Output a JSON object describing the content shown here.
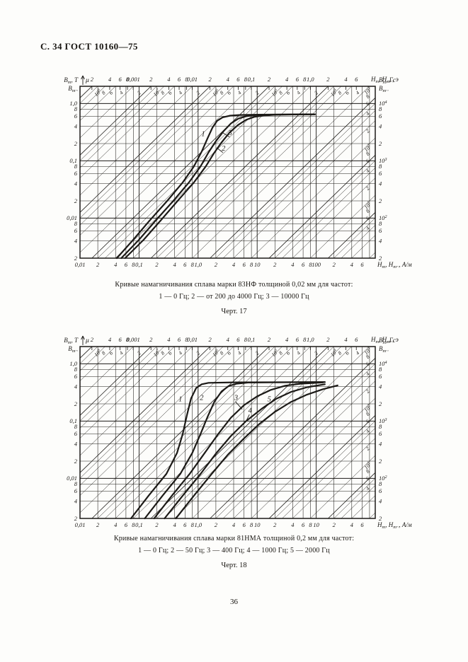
{
  "page": {
    "header": "С. 34 ГОСТ 10160—75",
    "page_number": "36"
  },
  "figure1": {
    "caption": "Кривые намагничивания сплава марки 83НФ толщиной 0,02  мм для частот:",
    "legend": "1 — 0 Гц; 2 — от 200 до 4000 Гц; 3 — 10000 Гц",
    "label": "Черт. 17"
  },
  "figure2": {
    "caption": "Кривые намагничивания сплава марки 81НМА толщиной 0,2  мм для частот:",
    "legend": "1 — 0 Гц; 2 — 50 Гц; 3 — 400 Гц; 4 — 1000 Гц; 5 — 2000 Гц",
    "label": "Черт. 18"
  },
  "chart_data": [
    {
      "type": "line",
      "title": "Кривые намагничивания сплава марки 83НФ толщиной 0,02 мм",
      "x_axis_bottom": {
        "label": "Hm, Hm~, А/м",
        "scale": "log",
        "range": [
          0.01,
          1000
        ],
        "decade_labels": [
          "0,01",
          "0,1",
          "1,0",
          "10",
          "100"
        ],
        "sub_ticks": [
          2,
          4,
          6,
          8
        ],
        "max_label_value": 600
      },
      "x_axis_top": {
        "label": "Hm, Hm~, э",
        "scale": "log",
        "unit_factor_A_per_m": 79.5775,
        "decade_labels": [
          "0,001",
          "0,01",
          "0,1",
          "1,0"
        ],
        "sub_ticks": [
          2,
          4,
          6,
          8
        ],
        "max_label_value": 6
      },
      "y_axis_left": {
        "label_lines": [
          "Bm, Т",
          "Bm~"
        ],
        "scale": "log",
        "range": [
          0.002,
          2
        ],
        "decade_labels": [
          "0,01",
          "0,1",
          "1,0"
        ],
        "sub_ticks": [
          2,
          4,
          6,
          8
        ]
      },
      "y_axis_right": {
        "label_lines": [
          "Bm, Гс",
          "Bm~"
        ],
        "decade_labels": [
          "10²",
          "10³",
          "10⁴"
        ],
        "sub_ticks": [
          2,
          4,
          6,
          8
        ]
      },
      "permeability_grid": {
        "symbol": "μ",
        "decade_labels": [
          "10¹",
          "10²",
          "10³",
          "10⁴",
          "10⁵",
          "10⁶",
          "10⁷",
          "10⁸"
        ]
      },
      "series": [
        {
          "name": "1",
          "frequency": "0 Гц",
          "label_at": [
            1.22,
            0.27
          ],
          "leader_to": null,
          "points": [
            [
              0.042,
              0.002
            ],
            [
              0.08,
              0.0042
            ],
            [
              0.15,
              0.009
            ],
            [
              0.3,
              0.02
            ],
            [
              0.55,
              0.042
            ],
            [
              0.85,
              0.08
            ],
            [
              1.15,
              0.145
            ],
            [
              1.45,
              0.25
            ],
            [
              1.75,
              0.38
            ],
            [
              2.1,
              0.5
            ],
            [
              2.6,
              0.575
            ],
            [
              3.5,
              0.615
            ],
            [
              5,
              0.63
            ],
            [
              10,
              0.64
            ],
            [
              95,
              0.648
            ]
          ]
        },
        {
          "name": "2",
          "frequency": "от 200 до 4000 Гц",
          "label_at": [
            2.7,
            0.15
          ],
          "leader_to": [
            2.05,
            0.17
          ],
          "points": [
            [
              0.058,
              0.002
            ],
            [
              0.12,
              0.0042
            ],
            [
              0.23,
              0.009
            ],
            [
              0.45,
              0.02
            ],
            [
              0.85,
              0.042
            ],
            [
              1.35,
              0.08
            ],
            [
              1.85,
              0.135
            ],
            [
              2.5,
              0.21
            ],
            [
              3.4,
              0.31
            ],
            [
              4.7,
              0.42
            ],
            [
              6.5,
              0.52
            ],
            [
              9,
              0.585
            ],
            [
              13,
              0.617
            ],
            [
              20,
              0.636
            ],
            [
              50,
              0.645
            ],
            [
              95,
              0.648
            ]
          ]
        },
        {
          "name": "3",
          "frequency": "10000 Гц",
          "label_at": [
            3.5,
            0.28
          ],
          "leader_to": [
            2.6,
            0.31
          ],
          "points": [
            [
              0.05,
              0.002
            ],
            [
              0.1,
              0.0042
            ],
            [
              0.19,
              0.009
            ],
            [
              0.38,
              0.02
            ],
            [
              0.7,
              0.042
            ],
            [
              1.1,
              0.08
            ],
            [
              1.5,
              0.14
            ],
            [
              2.0,
              0.22
            ],
            [
              2.7,
              0.33
            ],
            [
              3.6,
              0.45
            ],
            [
              4.8,
              0.545
            ],
            [
              6.5,
              0.6
            ],
            [
              9,
              0.625
            ],
            [
              14,
              0.638
            ],
            [
              95,
              0.648
            ]
          ]
        }
      ]
    },
    {
      "type": "line",
      "title": "Кривые намагничивания сплава марки 81НМА толщиной 0,2 мм",
      "x_axis_bottom": {
        "label": "Hm, Hm~, А/м",
        "scale": "log",
        "range": [
          0.01,
          1000
        ],
        "decade_labels": [
          "0,01",
          "0,1",
          "1,0",
          "10",
          "10"
        ],
        "sub_ticks": [
          2,
          4,
          6,
          8
        ],
        "max_label_value": 600
      },
      "x_axis_top": {
        "label": "Hm, Hm~, э",
        "scale": "log",
        "unit_factor_A_per_m": 79.5775,
        "decade_labels": [
          "0,001",
          "0,01",
          "0,1",
          "1,0"
        ],
        "sub_ticks": [
          2,
          4,
          6,
          8
        ],
        "max_label_value": 6
      },
      "y_axis_left": {
        "label_lines": [
          "Bm, Т",
          "Bm~"
        ],
        "scale": "log",
        "range": [
          0.002,
          2
        ],
        "decade_labels": [
          "0,01",
          "0,1",
          "1,0"
        ],
        "sub_ticks": [
          2,
          4,
          6,
          8
        ]
      },
      "y_axis_right": {
        "label_lines": [
          "Bm, Гс",
          "Bm~"
        ],
        "decade_labels": [
          "10²",
          "10³",
          "10⁴"
        ],
        "sub_ticks": [
          2,
          4,
          6,
          8
        ]
      },
      "permeability_grid": {
        "symbol": "μ",
        "decade_labels": [
          "10¹",
          "10²",
          "10³",
          "10⁴",
          "10⁵",
          "10⁶",
          "10⁷",
          "10⁸"
        ]
      },
      "series": [
        {
          "name": "1",
          "frequency": "0 Гц",
          "label_at": [
            0.5,
            0.22
          ],
          "leader_to": null,
          "points": [
            [
              0.073,
              0.002
            ],
            [
              0.145,
              0.005
            ],
            [
              0.29,
              0.012
            ],
            [
              0.44,
              0.028
            ],
            [
              0.55,
              0.06
            ],
            [
              0.65,
              0.13
            ],
            [
              0.76,
              0.25
            ],
            [
              0.93,
              0.38
            ],
            [
              1.15,
              0.44
            ],
            [
              1.5,
              0.465
            ],
            [
              4,
              0.475
            ],
            [
              140,
              0.48
            ]
          ]
        },
        {
          "name": "2",
          "frequency": "50 Гц",
          "label_at": [
            1.15,
            0.235
          ],
          "leader_to": null,
          "points": [
            [
              0.125,
              0.002
            ],
            [
              0.25,
              0.005
            ],
            [
              0.5,
              0.012
            ],
            [
              0.8,
              0.028
            ],
            [
              1.1,
              0.06
            ],
            [
              1.45,
              0.12
            ],
            [
              1.9,
              0.22
            ],
            [
              2.5,
              0.33
            ],
            [
              3.3,
              0.41
            ],
            [
              4.5,
              0.45
            ],
            [
              7,
              0.47
            ],
            [
              140,
              0.48
            ]
          ]
        },
        {
          "name": "3",
          "frequency": "400 Гц",
          "label_at": [
            4.4,
            0.235
          ],
          "leader_to": [
            5.6,
            0.16
          ],
          "points": [
            [
              0.18,
              0.002
            ],
            [
              0.36,
              0.005
            ],
            [
              0.72,
              0.012
            ],
            [
              1.3,
              0.028
            ],
            [
              2.2,
              0.06
            ],
            [
              3.6,
              0.115
            ],
            [
              6,
              0.19
            ],
            [
              10,
              0.27
            ],
            [
              17,
              0.35
            ],
            [
              30,
              0.415
            ],
            [
              55,
              0.45
            ],
            [
              130,
              0.472
            ]
          ]
        },
        {
          "name": "4",
          "frequency": "1000 Гц",
          "label_at": [
            7.6,
            0.14
          ],
          "leader_to": [
            6.5,
            0.1
          ],
          "points": [
            [
              0.27,
              0.002
            ],
            [
              0.55,
              0.005
            ],
            [
              1.1,
              0.012
            ],
            [
              2.0,
              0.027
            ],
            [
              3.6,
              0.055
            ],
            [
              6.5,
              0.1
            ],
            [
              12,
              0.165
            ],
            [
              21,
              0.245
            ],
            [
              38,
              0.325
            ],
            [
              70,
              0.39
            ],
            [
              140,
              0.44
            ]
          ]
        },
        {
          "name": "5",
          "frequency": "2000 Гц",
          "label_at": [
            16,
            0.22
          ],
          "leader_to": null,
          "points": [
            [
              0.42,
              0.002
            ],
            [
              0.85,
              0.005
            ],
            [
              1.7,
              0.012
            ],
            [
              3.2,
              0.026
            ],
            [
              6,
              0.05
            ],
            [
              11,
              0.09
            ],
            [
              20,
              0.145
            ],
            [
              37,
              0.215
            ],
            [
              70,
              0.29
            ],
            [
              130,
              0.36
            ],
            [
              230,
              0.42
            ]
          ]
        }
      ]
    }
  ]
}
